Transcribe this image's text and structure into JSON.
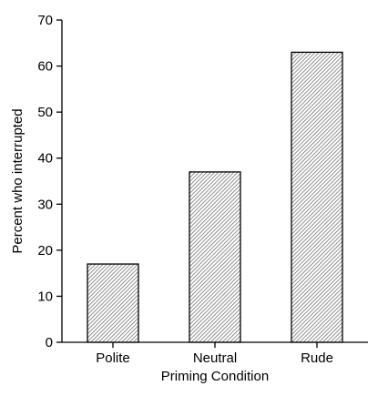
{
  "chart_data": {
    "type": "bar",
    "categories": [
      "Polite",
      "Neutral",
      "Rude"
    ],
    "values": [
      17,
      37,
      63
    ],
    "title": "",
    "xlabel": "Priming Condition",
    "ylabel": "Percent who interrupted",
    "ylim": [
      0,
      70
    ],
    "yticks": [
      0,
      10,
      20,
      30,
      40,
      50,
      60,
      70
    ],
    "bar_fill": "hatched",
    "grid": false
  }
}
